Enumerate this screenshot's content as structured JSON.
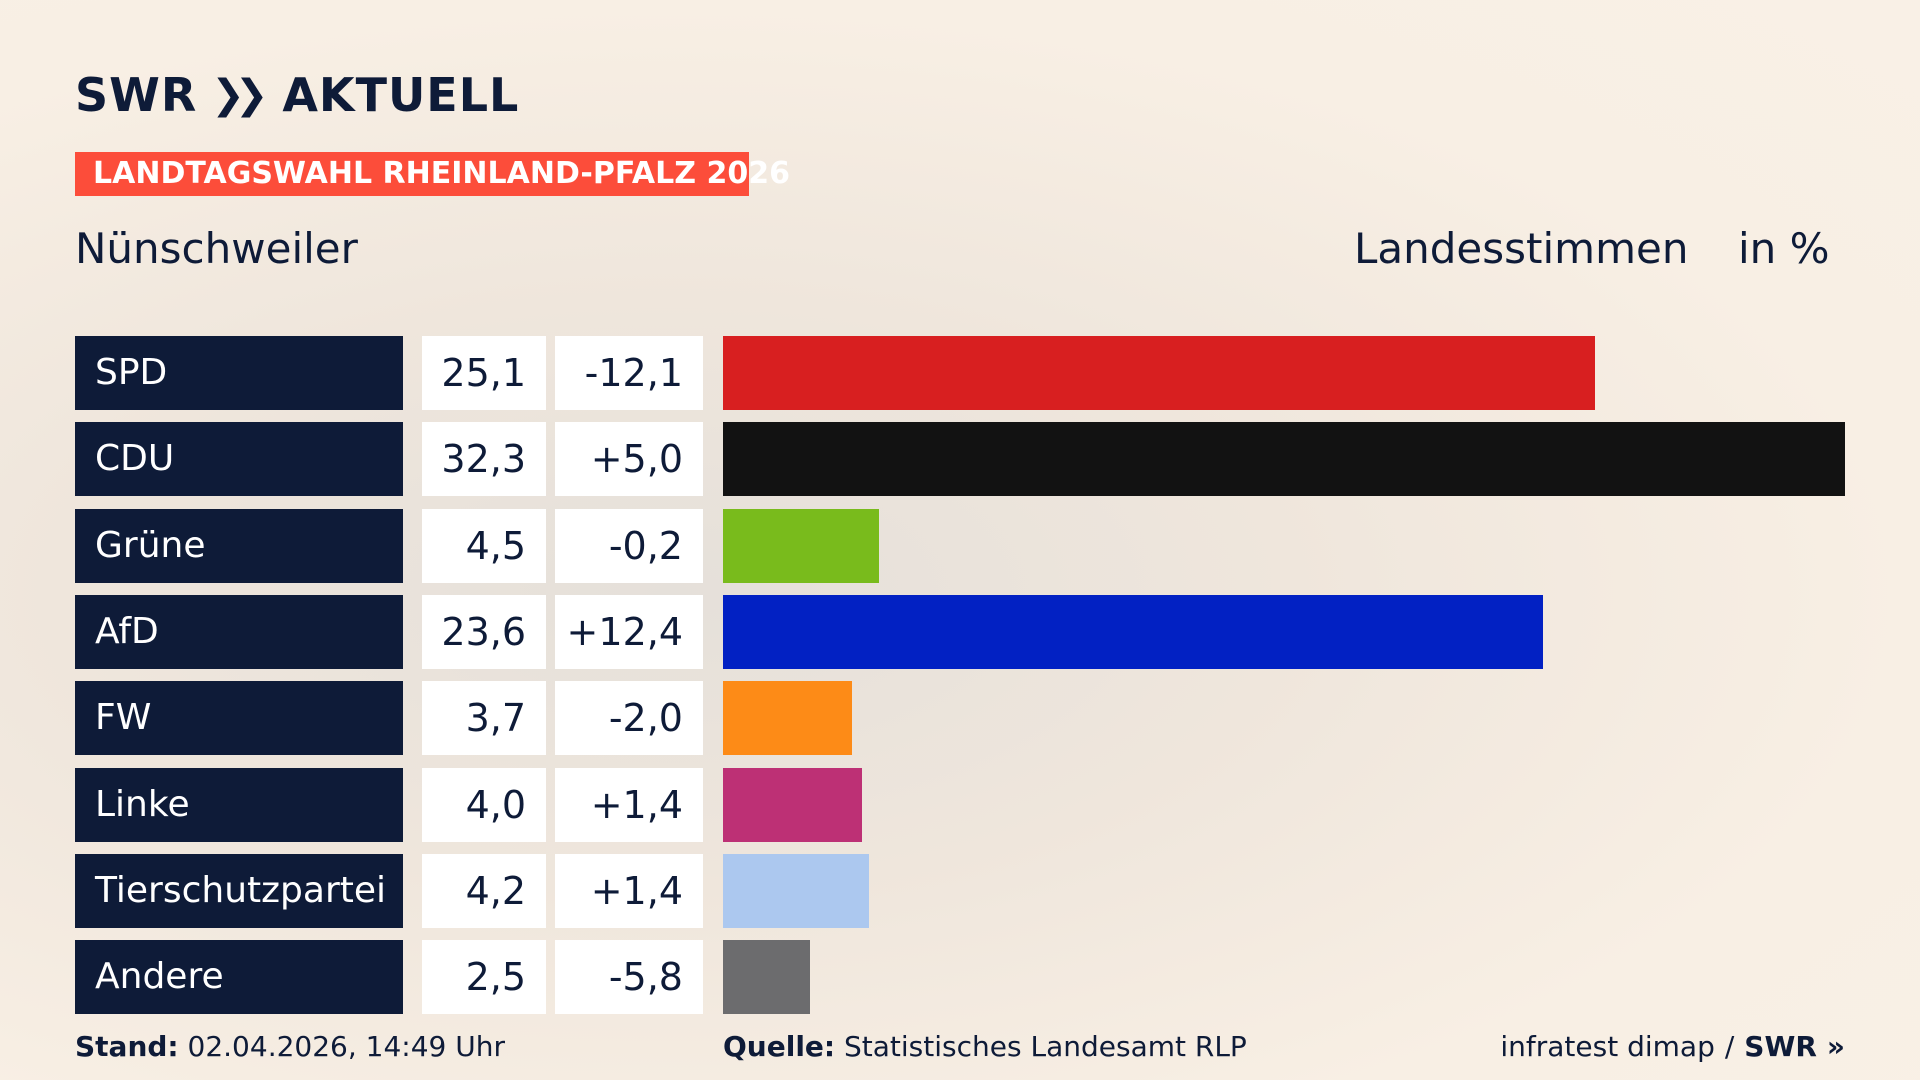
{
  "header": {
    "brand": "SWR",
    "brand_suffix": "AKTUELL",
    "badge": "LANDTAGSWAHL RHEINLAND-PFALZ 2026",
    "place": "Nünschweiler",
    "measure": "Landesstimmen",
    "unit": "in %"
  },
  "footer": {
    "stand_label": "Stand:",
    "stand_value": "02.04.2026, 14:49 Uhr",
    "quelle_label": "Quelle:",
    "quelle_value": "Statistisches Landesamt RLP",
    "credit": "infratest dimap",
    "credit_sep": "/",
    "credit_brand": "SWR"
  },
  "chart_data": {
    "type": "bar",
    "orientation": "horizontal",
    "categories": [
      "SPD",
      "CDU",
      "Grüne",
      "AfD",
      "FW",
      "Linke",
      "Tierschutzpartei",
      "Andere"
    ],
    "values": [
      25.1,
      32.3,
      4.5,
      23.6,
      3.7,
      4.0,
      4.2,
      2.5
    ],
    "value_labels": [
      "25,1",
      "32,3",
      "4,5",
      "23,6",
      "3,7",
      "4,0",
      "4,2",
      "2,5"
    ],
    "changes": [
      -12.1,
      5.0,
      -0.2,
      12.4,
      -2.0,
      1.4,
      1.4,
      -5.8
    ],
    "change_labels": [
      "-12,1",
      "+5,0",
      "-0,2",
      "+12,4",
      "-2,0",
      "+1,4",
      "+1,4",
      "-5,8"
    ],
    "colors": [
      "#d81f20",
      "#121212",
      "#79bb1c",
      "#0221c3",
      "#fd8b17",
      "#bd3075",
      "#acc8ef",
      "#6c6c6e"
    ],
    "title": "Nünschweiler",
    "xlabel": "",
    "ylabel": "Landesstimmen",
    "unit": "in %",
    "xlim": [
      0,
      32.3
    ],
    "grid": false,
    "legend": "none"
  }
}
